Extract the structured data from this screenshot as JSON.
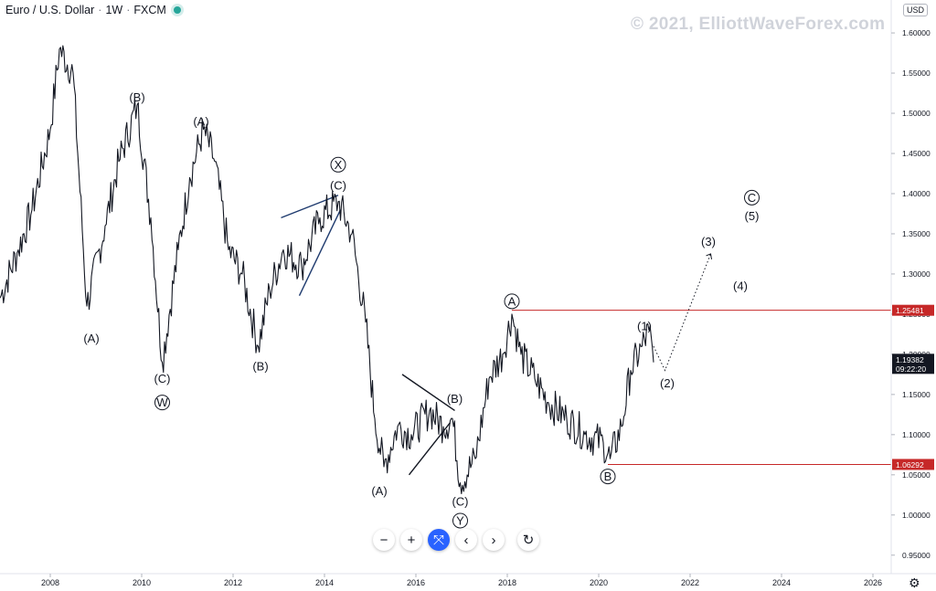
{
  "header": {
    "symbol": "Euro / U.S. Dollar",
    "interval": "1W",
    "exchange": "FXCM",
    "live_color": "#26a69a"
  },
  "watermark": "© 2021, ElliottWaveForex.com",
  "price_axis": {
    "currency": "USD",
    "labels": [
      "1.60000",
      "1.55000",
      "1.50000",
      "1.45000",
      "1.40000",
      "1.35000",
      "1.30000",
      "1.25000",
      "1.20000",
      "1.15000",
      "1.10000",
      "1.05000",
      "1.00000",
      "0.95000"
    ]
  },
  "price_tags": {
    "upper": {
      "value": "1.25481",
      "color": "#c62828"
    },
    "current": {
      "value": "1.19382",
      "timer": "09:22:20",
      "color": "#131722"
    },
    "lower": {
      "value": "1.06292",
      "color": "#c62828"
    }
  },
  "toolbar": {
    "zoom_out": "−",
    "zoom_in": "+",
    "reset_view": "⤧",
    "scroll_left": "‹",
    "scroll_right": "›",
    "reset": "↻",
    "accent": "#2962ff"
  },
  "settings_icon": "⚙",
  "chart_data": {
    "type": "line",
    "title": "Euro / U.S. Dollar · 1W · FXCM",
    "xlabel": "",
    "ylabel": "",
    "xlim": [
      2006.9,
      2026.4
    ],
    "ylim": [
      0.927,
      1.641
    ],
    "x_ticks": [
      2008,
      2010,
      2012,
      2014,
      2016,
      2018,
      2020,
      2022,
      2024,
      2026
    ],
    "y_ticks": [
      0.95,
      1.0,
      1.05,
      1.1,
      1.15,
      1.2,
      1.25,
      1.3,
      1.35,
      1.4,
      1.45,
      1.5,
      1.55,
      1.6
    ],
    "grid": false,
    "series": [
      {
        "color": "#131722",
        "x": [
          2006.9,
          2007.3,
          2007.6,
          2008.0,
          2008.2,
          2008.5,
          2008.8,
          2009.2,
          2009.5,
          2009.9,
          2010.2,
          2010.45,
          2010.8,
          2011.05,
          2011.35,
          2011.6,
          2011.9,
          2012.2,
          2012.55,
          2012.8,
          2013.1,
          2013.5,
          2013.9,
          2014.3,
          2014.6,
          2014.9,
          2015.1,
          2015.3,
          2015.6,
          2015.9,
          2016.3,
          2016.6,
          2016.8,
          2016.97,
          2017.3,
          2017.6,
          2017.9,
          2018.1,
          2018.3,
          2018.6,
          2018.9,
          2019.3,
          2019.7,
          2020.1,
          2020.25,
          2020.5,
          2020.7,
          2020.95,
          2021.1,
          2021.2
        ],
        "values": [
          1.27,
          1.33,
          1.38,
          1.48,
          1.58,
          1.55,
          1.26,
          1.36,
          1.44,
          1.51,
          1.37,
          1.19,
          1.33,
          1.42,
          1.48,
          1.44,
          1.33,
          1.3,
          1.21,
          1.28,
          1.33,
          1.31,
          1.37,
          1.39,
          1.35,
          1.24,
          1.12,
          1.06,
          1.11,
          1.1,
          1.13,
          1.11,
          1.12,
          1.04,
          1.07,
          1.17,
          1.2,
          1.25,
          1.2,
          1.17,
          1.14,
          1.12,
          1.1,
          1.09,
          1.07,
          1.11,
          1.18,
          1.21,
          1.23,
          1.19
        ]
      }
    ],
    "projection": {
      "style": "dotted",
      "x": [
        2021.2,
        2021.45,
        2022.45
      ],
      "values": [
        1.21,
        1.18,
        1.325
      ]
    },
    "horizontal_levels": [
      {
        "value": 1.25481,
        "x_start": 2018.1,
        "color": "#c62828"
      },
      {
        "value": 1.06292,
        "x_start": 2020.2,
        "color": "#c62828"
      }
    ],
    "pattern_lines": [
      {
        "color": "#1e3a6e",
        "x": [
          2013.05,
          2014.3
        ],
        "values": [
          1.37,
          1.398
        ]
      },
      {
        "color": "#1e3a6e",
        "x": [
          2013.45,
          2014.35
        ],
        "values": [
          1.273,
          1.38
        ]
      },
      {
        "color": "#131722",
        "x": [
          2015.7,
          2016.85
        ],
        "values": [
          1.175,
          1.13
        ]
      },
      {
        "color": "#131722",
        "x": [
          2015.85,
          2016.75
        ],
        "values": [
          1.05,
          1.115
        ]
      }
    ],
    "annotations": [
      {
        "text": "(B)",
        "x": 2009.9,
        "y": 1.52,
        "circled": false
      },
      {
        "text": "(A)",
        "x": 2008.9,
        "y": 1.22,
        "circled": false
      },
      {
        "text": "(C)",
        "x": 2010.45,
        "y": 1.17,
        "circled": false
      },
      {
        "text": "W",
        "x": 2010.45,
        "y": 1.14,
        "circled": true
      },
      {
        "text": "(A)",
        "x": 2011.3,
        "y": 1.49,
        "circled": false
      },
      {
        "text": "(B)",
        "x": 2012.6,
        "y": 1.185,
        "circled": false
      },
      {
        "text": "X",
        "x": 2014.3,
        "y": 1.436,
        "circled": true
      },
      {
        "text": "(C)",
        "x": 2014.3,
        "y": 1.41,
        "circled": false
      },
      {
        "text": "(A)",
        "x": 2015.2,
        "y": 1.03,
        "circled": false
      },
      {
        "text": "(B)",
        "x": 2016.85,
        "y": 1.145,
        "circled": false
      },
      {
        "text": "(C)",
        "x": 2016.97,
        "y": 1.017,
        "circled": false
      },
      {
        "text": "Y",
        "x": 2016.97,
        "y": 0.993,
        "circled": true
      },
      {
        "text": "A",
        "x": 2018.1,
        "y": 1.266,
        "circled": true
      },
      {
        "text": "B",
        "x": 2020.2,
        "y": 1.048,
        "circled": true
      },
      {
        "text": "(1)",
        "x": 2021.0,
        "y": 1.235,
        "circled": false
      },
      {
        "text": "(2)",
        "x": 2021.5,
        "y": 1.164,
        "circled": false
      },
      {
        "text": "(3)",
        "x": 2022.4,
        "y": 1.34,
        "circled": false
      },
      {
        "text": "(4)",
        "x": 2023.1,
        "y": 1.285,
        "circled": false
      },
      {
        "text": "C",
        "x": 2023.35,
        "y": 1.395,
        "circled": true
      },
      {
        "text": "(5)",
        "x": 2023.35,
        "y": 1.372,
        "circled": false
      }
    ]
  }
}
